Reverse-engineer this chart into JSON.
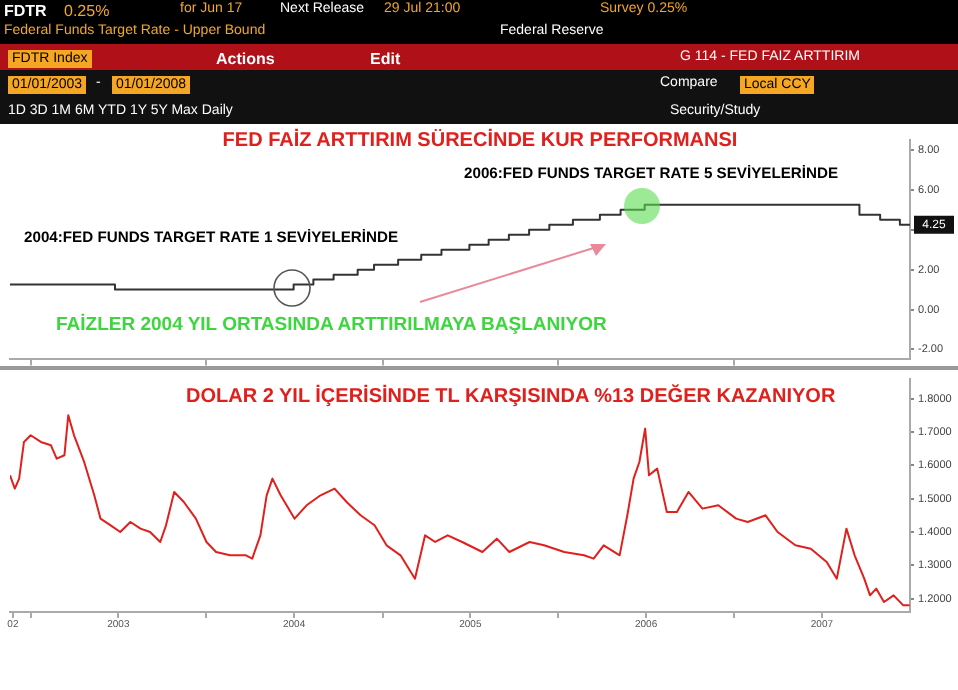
{
  "chart_data": [
    {
      "type": "step",
      "title": "FED FAİZ ARTTIRIM SÜRECİNDE KUR PERFORMANSI",
      "color": "#333333",
      "annotations": [
        "FDTR",
        "0.25%",
        "for Jun 17",
        "Next Release",
        "29 Jul 21:00",
        "Survey 0.25%",
        "Federal Funds Target Rate - Upper Bound",
        "Federal Reserve",
        "FDTR Index",
        "Actions",
        "Edit",
        "G 114 - FED FAIZ ARTTIRIM",
        "01/01/2003",
        "-",
        "01/01/2008",
        "Compare",
        "Local CCY",
        "1D 3D 1M 6M YTD 1Y 5Y Max Daily",
        "Security/Study",
        "2006:FED FUNDS TARGET RATE 5 SEVİYELERİNDE",
        "2004:FED FUNDS TARGET RATE 1 SEVİYELERİNDE",
        "FAİZLER 2004 YIL ORTASINDA ARTTIRILMAYA BAŞLANIYOR",
        {
          "text": "4.25",
          "x": "2008-01-01",
          "y": 4.25
        }
      ],
      "x": [
        "2002-11-19",
        "2003-06-25",
        "2004-06-30",
        "2004-08-10",
        "2004-09-21",
        "2004-11-10",
        "2004-12-14",
        "2005-02-02",
        "2005-03-22",
        "2005-05-03",
        "2005-06-30",
        "2005-08-09",
        "2005-09-20",
        "2005-11-01",
        "2005-12-13",
        "2006-01-31",
        "2006-03-28",
        "2006-05-10",
        "2006-06-29",
        "2007-09-18",
        "2007-10-31",
        "2007-12-11",
        "2008-01-01"
      ],
      "values": [
        1.25,
        1.0,
        1.25,
        1.5,
        1.75,
        2.0,
        2.25,
        2.5,
        2.75,
        3.0,
        3.25,
        3.5,
        3.75,
        4.0,
        4.25,
        4.5,
        4.75,
        5.0,
        5.25,
        4.75,
        4.5,
        4.25,
        4.25
      ],
      "xlim": [
        "2002-11-19",
        "2008-01-01"
      ],
      "ylim": [
        -2.5,
        8.5
      ],
      "xticks": [
        {
          "value": "2003-01-01",
          "label": null
        },
        {
          "value": "2004-01-01",
          "label": null
        },
        {
          "value": "2005-01-01",
          "label": null
        },
        {
          "value": "2006-01-01",
          "label": null
        },
        {
          "value": "2007-01-01",
          "label": null
        }
      ],
      "yticks": [
        {
          "value": -2,
          "label": "-2.00"
        },
        {
          "value": 0,
          "label": "0.00"
        },
        {
          "value": 2,
          "label": "2.00"
        },
        {
          "value": 4,
          "label": null
        },
        {
          "value": 6,
          "label": "6.00"
        },
        {
          "value": 8,
          "label": "8.00"
        }
      ],
      "tick_labels": "y"
    },
    {
      "type": "line",
      "title": "DOLAR 2 YIL İÇERİSİNDE TL KARŞISINDA %13 DEĞER KAZANIYOR",
      "color": "#e0201c",
      "x": [
        "2002-11-19",
        "2002-11-29",
        "2002-12-08",
        "2002-12-18",
        "2003-01-01",
        "2003-01-22",
        "2003-02-12",
        "2003-02-24",
        "2003-03-12",
        "2003-03-20",
        "2003-04-01",
        "2003-04-22",
        "2003-05-13",
        "2003-05-26",
        "2003-06-16",
        "2003-07-06",
        "2003-07-27",
        "2003-08-17",
        "2003-09-06",
        "2003-09-27",
        "2003-10-09",
        "2003-10-26",
        "2003-11-15",
        "2003-12-10",
        "2004-01-01",
        "2004-01-21",
        "2004-02-19",
        "2004-03-23",
        "2004-04-05",
        "2004-04-22",
        "2004-05-05",
        "2004-05-17",
        "2004-06-03",
        "2004-07-02",
        "2004-07-27",
        "2004-08-25",
        "2004-09-23",
        "2004-10-18",
        "2004-11-16",
        "2004-12-15",
        "2005-01-09",
        "2005-02-07",
        "2005-03-09",
        "2005-03-30",
        "2005-04-20",
        "2005-05-16",
        "2005-06-15",
        "2005-07-27",
        "2005-08-26",
        "2005-09-21",
        "2005-11-02",
        "2005-12-02",
        "2006-01-13",
        "2006-02-23",
        "2006-03-15",
        "2006-04-05",
        "2006-05-08",
        "2006-05-24",
        "2006-06-06",
        "2006-06-18",
        "2006-06-30",
        "2006-07-08",
        "2006-07-25",
        "2006-08-14",
        "2006-09-04",
        "2006-09-28",
        "2006-10-27",
        "2006-11-29",
        "2007-01-05",
        "2007-01-29",
        "2007-03-07",
        "2007-04-01",
        "2007-05-08",
        "2007-06-09",
        "2007-07-12",
        "2007-08-02",
        "2007-08-22",
        "2007-09-08",
        "2007-09-28",
        "2007-10-10",
        "2007-10-23",
        "2007-11-08",
        "2007-11-28",
        "2007-12-18",
        "2007-12-31"
      ],
      "values": [
        1.57,
        1.53,
        1.56,
        1.67,
        1.69,
        1.67,
        1.66,
        1.62,
        1.63,
        1.75,
        1.69,
        1.61,
        1.51,
        1.44,
        1.42,
        1.4,
        1.43,
        1.41,
        1.4,
        1.37,
        1.42,
        1.52,
        1.49,
        1.44,
        1.37,
        1.34,
        1.33,
        1.33,
        1.32,
        1.39,
        1.51,
        1.56,
        1.51,
        1.44,
        1.48,
        1.51,
        1.53,
        1.49,
        1.45,
        1.42,
        1.36,
        1.33,
        1.26,
        1.39,
        1.37,
        1.39,
        1.37,
        1.34,
        1.38,
        1.34,
        1.37,
        1.36,
        1.34,
        1.33,
        1.32,
        1.36,
        1.33,
        1.45,
        1.56,
        1.61,
        1.71,
        1.57,
        1.59,
        1.46,
        1.46,
        1.52,
        1.47,
        1.48,
        1.44,
        1.43,
        1.45,
        1.4,
        1.36,
        1.35,
        1.31,
        1.26,
        1.41,
        1.33,
        1.26,
        1.21,
        1.23,
        1.19,
        1.21,
        1.18,
        1.18
      ],
      "xlim": [
        "2002-11-19",
        "2008-01-01"
      ],
      "ylim": [
        1.16,
        1.86
      ],
      "yticks": [
        {
          "value": 1.2,
          "label": "1.2000"
        },
        {
          "value": 1.3,
          "label": "1.3000"
        },
        {
          "value": 1.4,
          "label": "1.4000"
        },
        {
          "value": 1.5,
          "label": "1.5000"
        },
        {
          "value": 1.6,
          "label": "1.6000"
        },
        {
          "value": 1.7,
          "label": "1.7000"
        },
        {
          "value": 1.8,
          "label": "1.8000"
        }
      ],
      "xticks": [
        {
          "value": "2002-11-25",
          "label": "02"
        },
        {
          "value": "2003-01-01",
          "label": null
        },
        {
          "value": "2003-07-02",
          "label": "2003"
        },
        {
          "value": "2004-01-01",
          "label": null
        },
        {
          "value": "2004-07-01",
          "label": "2004"
        },
        {
          "value": "2005-01-01",
          "label": null
        },
        {
          "value": "2005-07-02",
          "label": "2005"
        },
        {
          "value": "2006-01-01",
          "label": null
        },
        {
          "value": "2006-07-02",
          "label": "2006"
        },
        {
          "value": "2007-01-01",
          "label": null
        },
        {
          "value": "2007-07-02",
          "label": "2007"
        }
      ]
    }
  ]
}
